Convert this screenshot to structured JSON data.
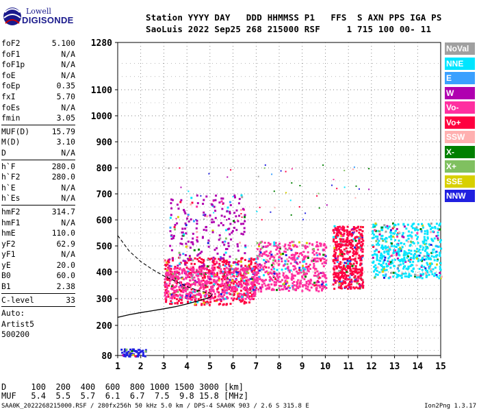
{
  "logo": {
    "line1": "Lowell",
    "line2": "DIGISONDE"
  },
  "header": {
    "line1": "Station YYYY DAY   DDD HHMMSS P1   FFS  S AXN PPS IGA PS",
    "line2": "SaoLuis 2022 Sep25 268 215000 RSF     1 715 100 00- 11"
  },
  "params": {
    "g1": [
      [
        "foF2",
        "5.100"
      ],
      [
        "foF1",
        "N/A"
      ],
      [
        "foF1p",
        "N/A"
      ],
      [
        "foE",
        "N/A"
      ],
      [
        "foEp",
        "0.35"
      ],
      [
        "fxI",
        "5.70"
      ],
      [
        "foEs",
        "N/A"
      ],
      [
        "fmin",
        "3.05"
      ]
    ],
    "g2": [
      [
        "MUF(D)",
        "15.79"
      ],
      [
        "M(D)",
        "3.10"
      ],
      [
        "D",
        "N/A"
      ]
    ],
    "g3": [
      [
        "h`F",
        "280.0"
      ],
      [
        "h`F2",
        "280.0"
      ],
      [
        "h`E",
        "N/A"
      ],
      [
        "h`Es",
        "N/A"
      ]
    ],
    "g4": [
      [
        "hmF2",
        "314.7"
      ],
      [
        "hmF1",
        "N/A"
      ],
      [
        "hmE",
        "110.0"
      ],
      [
        "yF2",
        "62.9"
      ],
      [
        "yF1",
        "N/A"
      ],
      [
        "yE",
        "20.0"
      ],
      [
        "B0",
        "60.0"
      ],
      [
        "B1",
        "2.38"
      ]
    ],
    "g5": [
      [
        "C-level",
        "33"
      ]
    ],
    "auto": [
      "Auto:",
      "Artist5",
      "500200"
    ]
  },
  "legend": [
    {
      "label": "NoVal",
      "color": "#a0a0a0"
    },
    {
      "label": "NNE",
      "color": "#00e5ff"
    },
    {
      "label": "E",
      "color": "#3aa0ff"
    },
    {
      "label": "W",
      "color": "#b000b0"
    },
    {
      "label": "Vo-",
      "color": "#ff2fa0"
    },
    {
      "label": "Vo+",
      "color": "#ff0040"
    },
    {
      "label": "SSW",
      "color": "#ffb0b0"
    },
    {
      "label": "X-",
      "color": "#008000"
    },
    {
      "label": "X+",
      "color": "#80c060"
    },
    {
      "label": "SSE",
      "color": "#d8d000"
    },
    {
      "label": "NNW",
      "color": "#2020e0"
    }
  ],
  "bottom": {
    "d_line": "D     100  200  400  600  800 1000 1500 3000 [km]",
    "muf_line": "MUF   5.4  5.5  5.7  6.1  6.7  7.5  9.8 15.8 [MHz]"
  },
  "footer": {
    "left": "SAA0K_2022268215000.RSF / 280fx256h 50 kHz 5.0 km / DPS-4 SAA0K 903 / 2.6 S 315.8 E",
    "right": "Ion2Png 1.3.17"
  },
  "chart_data": {
    "type": "scatter",
    "xlim": [
      1,
      15
    ],
    "ylim": [
      80,
      1280
    ],
    "x_ticks": [
      1,
      2,
      3,
      4,
      5,
      6,
      7,
      8,
      9,
      10,
      11,
      12,
      13,
      14,
      15
    ],
    "y_ticks": [
      80,
      200,
      300,
      400,
      500,
      600,
      700,
      800,
      900,
      1000,
      1100,
      1280
    ],
    "y_scale": "quasi-log",
    "grid": true,
    "clusters": [
      {
        "name": "F-trace main",
        "x": [
          3.0,
          7.0
        ],
        "y": [
          280,
          460
        ],
        "color": "#ff0040"
      },
      {
        "name": "F-trace mixed",
        "x": [
          3.0,
          7.0
        ],
        "y": [
          300,
          420
        ],
        "color": "#ff2fa0"
      },
      {
        "name": "spread F",
        "x": [
          7.0,
          10.0
        ],
        "y": [
          330,
          520
        ],
        "color": "#ff2fa0"
      },
      {
        "name": "spread F high",
        "x": [
          10.3,
          11.6
        ],
        "y": [
          340,
          580
        ],
        "color": "#ff0040"
      },
      {
        "name": "oblique",
        "x": [
          12.0,
          15.0
        ],
        "y": [
          380,
          590
        ],
        "color": "#00e5ff"
      },
      {
        "name": "W echoes",
        "x": [
          3.2,
          6.5
        ],
        "y": [
          420,
          700
        ],
        "color": "#b000b0"
      },
      {
        "name": "low echoes",
        "x": [
          1.1,
          2.2
        ],
        "y": [
          80,
          110
        ],
        "color": "#2020e0"
      }
    ],
    "profile_solid": {
      "x": [
        1.0,
        1.5,
        2.0,
        2.5,
        3.0,
        3.5,
        4.0,
        4.5,
        5.0,
        5.1
      ],
      "y": [
        230,
        240,
        248,
        255,
        262,
        270,
        280,
        292,
        305,
        315
      ]
    },
    "profile_dashed": {
      "x": [
        1.0,
        1.5,
        2.0,
        2.5,
        3.0,
        3.5,
        4.0,
        4.5,
        5.0,
        5.1
      ],
      "y": [
        540,
        480,
        440,
        410,
        385,
        365,
        345,
        330,
        320,
        315
      ]
    }
  }
}
